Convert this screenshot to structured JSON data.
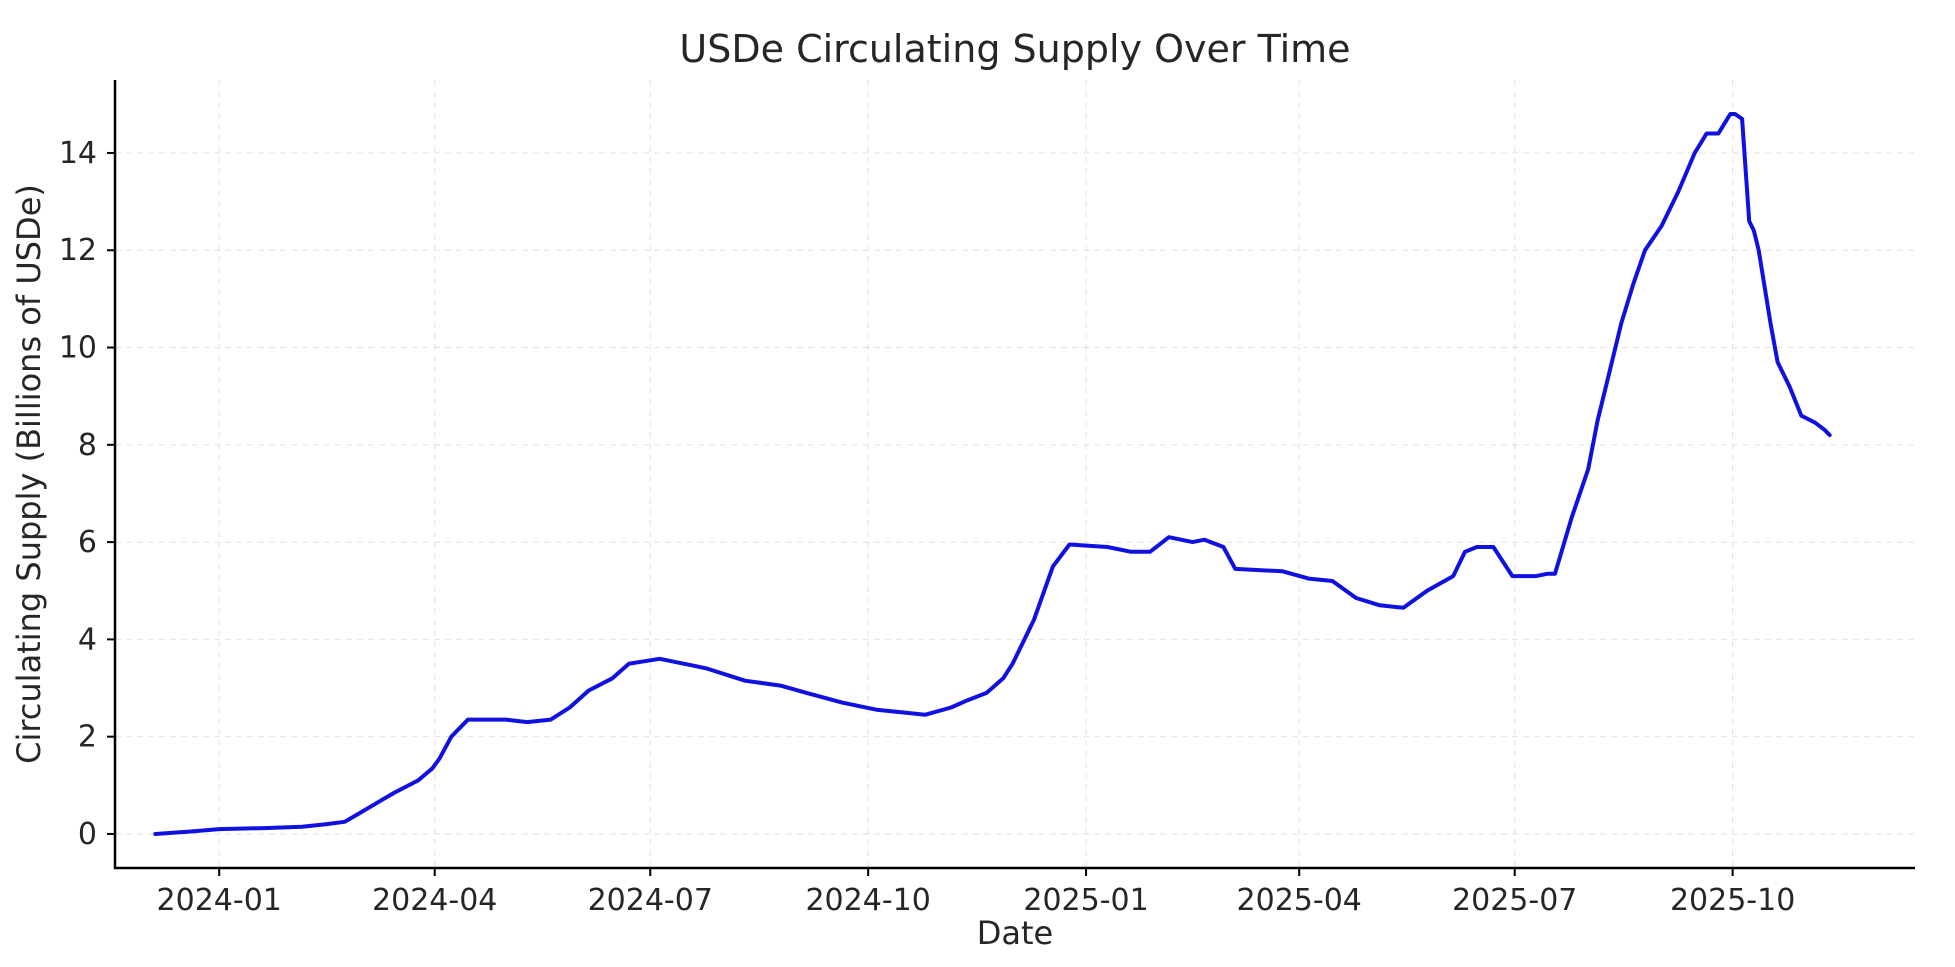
{
  "chart_data": {
    "type": "line",
    "title": "USDe Circulating Supply Over Time",
    "xlabel": "Date",
    "ylabel": "Circulating Supply (Billions of USDe)",
    "xlim": [
      "2023-11-18",
      "2025-12-17"
    ],
    "ylim": [
      -0.7,
      15.5
    ],
    "x_ticks": [
      "2024-01",
      "2024-04",
      "2024-07",
      "2024-10",
      "2025-01",
      "2025-04",
      "2025-07",
      "2025-10"
    ],
    "y_ticks": [
      0,
      2,
      4,
      6,
      8,
      10,
      12,
      14
    ],
    "grid": true,
    "line_color": "#1010e0",
    "series": [
      {
        "x": [
          "2023-12-05",
          "2023-12-20",
          "2024-01-01",
          "2024-01-20",
          "2024-02-05",
          "2024-02-15",
          "2024-02-23",
          "2024-03-01",
          "2024-03-08",
          "2024-03-15",
          "2024-03-25",
          "2024-03-31",
          "2024-04-03",
          "2024-04-08",
          "2024-04-15",
          "2024-05-01",
          "2024-05-10",
          "2024-05-20",
          "2024-05-28",
          "2024-06-05",
          "2024-06-15",
          "2024-06-22",
          "2024-07-05",
          "2024-07-20",
          "2024-07-25",
          "2024-08-10",
          "2024-08-25",
          "2024-09-05",
          "2024-09-20",
          "2024-10-05",
          "2024-10-15",
          "2024-10-25",
          "2024-11-05",
          "2024-11-12",
          "2024-11-20",
          "2024-11-27",
          "2024-12-01",
          "2024-12-05",
          "2024-12-10",
          "2024-12-18",
          "2024-12-25",
          "2025-01-10",
          "2025-01-20",
          "2025-01-28",
          "2025-02-05",
          "2025-02-15",
          "2025-02-20",
          "2025-02-28",
          "2025-03-05",
          "2025-03-25",
          "2025-04-05",
          "2025-04-15",
          "2025-04-25",
          "2025-05-05",
          "2025-05-15",
          "2025-05-25",
          "2025-06-05",
          "2025-06-10",
          "2025-06-15",
          "2025-06-22",
          "2025-06-26",
          "2025-06-30",
          "2025-07-10",
          "2025-07-15",
          "2025-07-18",
          "2025-07-25",
          "2025-08-01",
          "2025-08-05",
          "2025-08-10",
          "2025-08-15",
          "2025-08-20",
          "2025-08-25",
          "2025-09-01",
          "2025-09-08",
          "2025-09-15",
          "2025-09-20",
          "2025-09-25",
          "2025-09-30",
          "2025-10-02",
          "2025-10-05",
          "2025-10-08",
          "2025-10-10",
          "2025-10-12",
          "2025-10-17",
          "2025-10-20",
          "2025-10-25",
          "2025-10-30",
          "2025-11-05",
          "2025-11-09",
          "2025-11-11"
        ],
        "y": [
          0.0,
          0.05,
          0.1,
          0.12,
          0.15,
          0.2,
          0.25,
          0.45,
          0.65,
          0.85,
          1.1,
          1.35,
          1.55,
          2.0,
          2.35,
          2.35,
          2.3,
          2.35,
          2.6,
          2.95,
          3.2,
          3.5,
          3.6,
          3.45,
          3.4,
          3.15,
          3.05,
          2.9,
          2.7,
          2.55,
          2.5,
          2.45,
          2.6,
          2.75,
          2.9,
          3.2,
          3.5,
          3.9,
          4.4,
          5.5,
          5.95,
          5.9,
          5.8,
          5.8,
          6.1,
          6.0,
          6.05,
          5.9,
          5.45,
          5.4,
          5.25,
          5.2,
          4.85,
          4.7,
          4.65,
          5.0,
          5.3,
          5.8,
          5.9,
          5.9,
          5.6,
          5.3,
          5.3,
          5.35,
          5.35,
          6.5,
          7.5,
          8.5,
          9.5,
          10.5,
          11.3,
          12.0,
          12.5,
          13.2,
          14.0,
          14.4,
          14.4,
          14.8,
          14.8,
          14.7,
          12.6,
          12.4,
          12.0,
          10.5,
          9.7,
          9.2,
          8.6,
          8.45,
          8.3,
          8.2
        ]
      }
    ]
  }
}
